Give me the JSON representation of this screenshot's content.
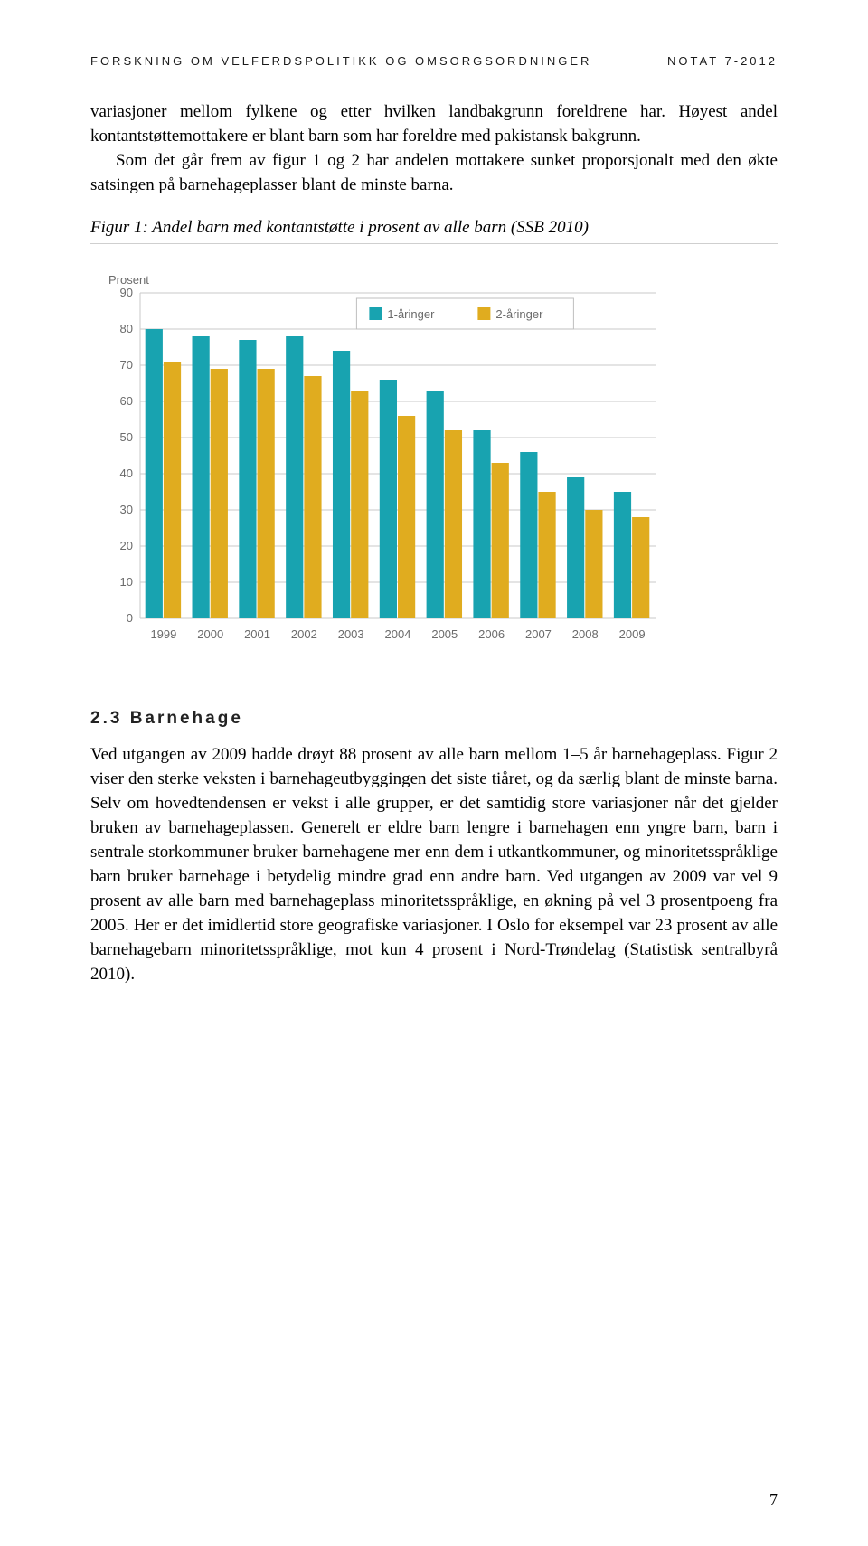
{
  "header": {
    "left": "FORSKNING OM VELFERDSPOLITIKK OG OMSORGSORDNINGER",
    "right": "NOTAT 7-2012"
  },
  "para1": "variasjoner mellom fylkene og etter hvilken landbakgrunn foreldrene har. Høyest andel kontantstøttemottakere er blant barn som har foreldre med pakistansk bakgrunn.",
  "para1b": "Som det går frem av figur 1 og 2 har andelen mottakere sunket proporsjonalt med den økte satsingen på barnehageplasser blant de minste barna.",
  "figcaption": "Figur 1: Andel barn med kontantstøtte i prosent av alle barn (SSB 2010)",
  "chart": {
    "type": "bar",
    "y_label": "Prosent",
    "categories": [
      "1999",
      "2000",
      "2001",
      "2002",
      "2003",
      "2004",
      "2005",
      "2006",
      "2007",
      "2008",
      "2009"
    ],
    "series": [
      {
        "name": "1-åringer",
        "color": "#18a3b0",
        "values": [
          80,
          78,
          77,
          78,
          74,
          66,
          63,
          52,
          46,
          39,
          35
        ]
      },
      {
        "name": "2-åringer",
        "color": "#e0ac1f",
        "values": [
          71,
          69,
          69,
          67,
          63,
          56,
          52,
          43,
          35,
          30,
          28
        ]
      }
    ],
    "ylim": [
      0,
      90
    ],
    "ytick_step": 10,
    "background_color": "#ffffff",
    "grid_color": "#cacaca",
    "axis_font": "Arial",
    "axis_fontsize": 13,
    "axis_color": "#6b6b6b",
    "bar_group_width": 0.78,
    "legend_bg": "#ffffff",
    "legend_border": "#bfbfbf"
  },
  "section": {
    "num": "2.3",
    "title": "Barnehage"
  },
  "para2": "Ved utgangen av 2009 hadde drøyt 88 prosent av alle barn mellom 1–5 år barnehageplass. Figur 2 viser den sterke veksten i barnehageutbyggingen det siste tiåret, og da særlig blant de minste barna. Selv om hovedtendensen er vekst i alle grupper, er det samtidig store variasjoner når det gjelder bruken av barnehageplassen. Generelt er eldre barn lengre i barnehagen enn yngre barn, barn i sentrale storkommuner bruker barnehagene mer enn dem i utkantkommuner, og minoritetsspråklige barn bruker barnehage i betydelig mindre grad enn andre barn. Ved utgangen av 2009 var vel 9 prosent av alle barn med barnehageplass minoritetsspråklige, en økning på vel 3 prosentpoeng fra 2005. Her er det imidlertid store geografiske variasjoner. I Oslo for eksempel var 23 prosent av alle barnehagebarn minoritetsspråklige, mot kun 4 prosent i Nord-Trøndelag (Statistisk sentralbyrå 2010).",
  "page_number": "7"
}
